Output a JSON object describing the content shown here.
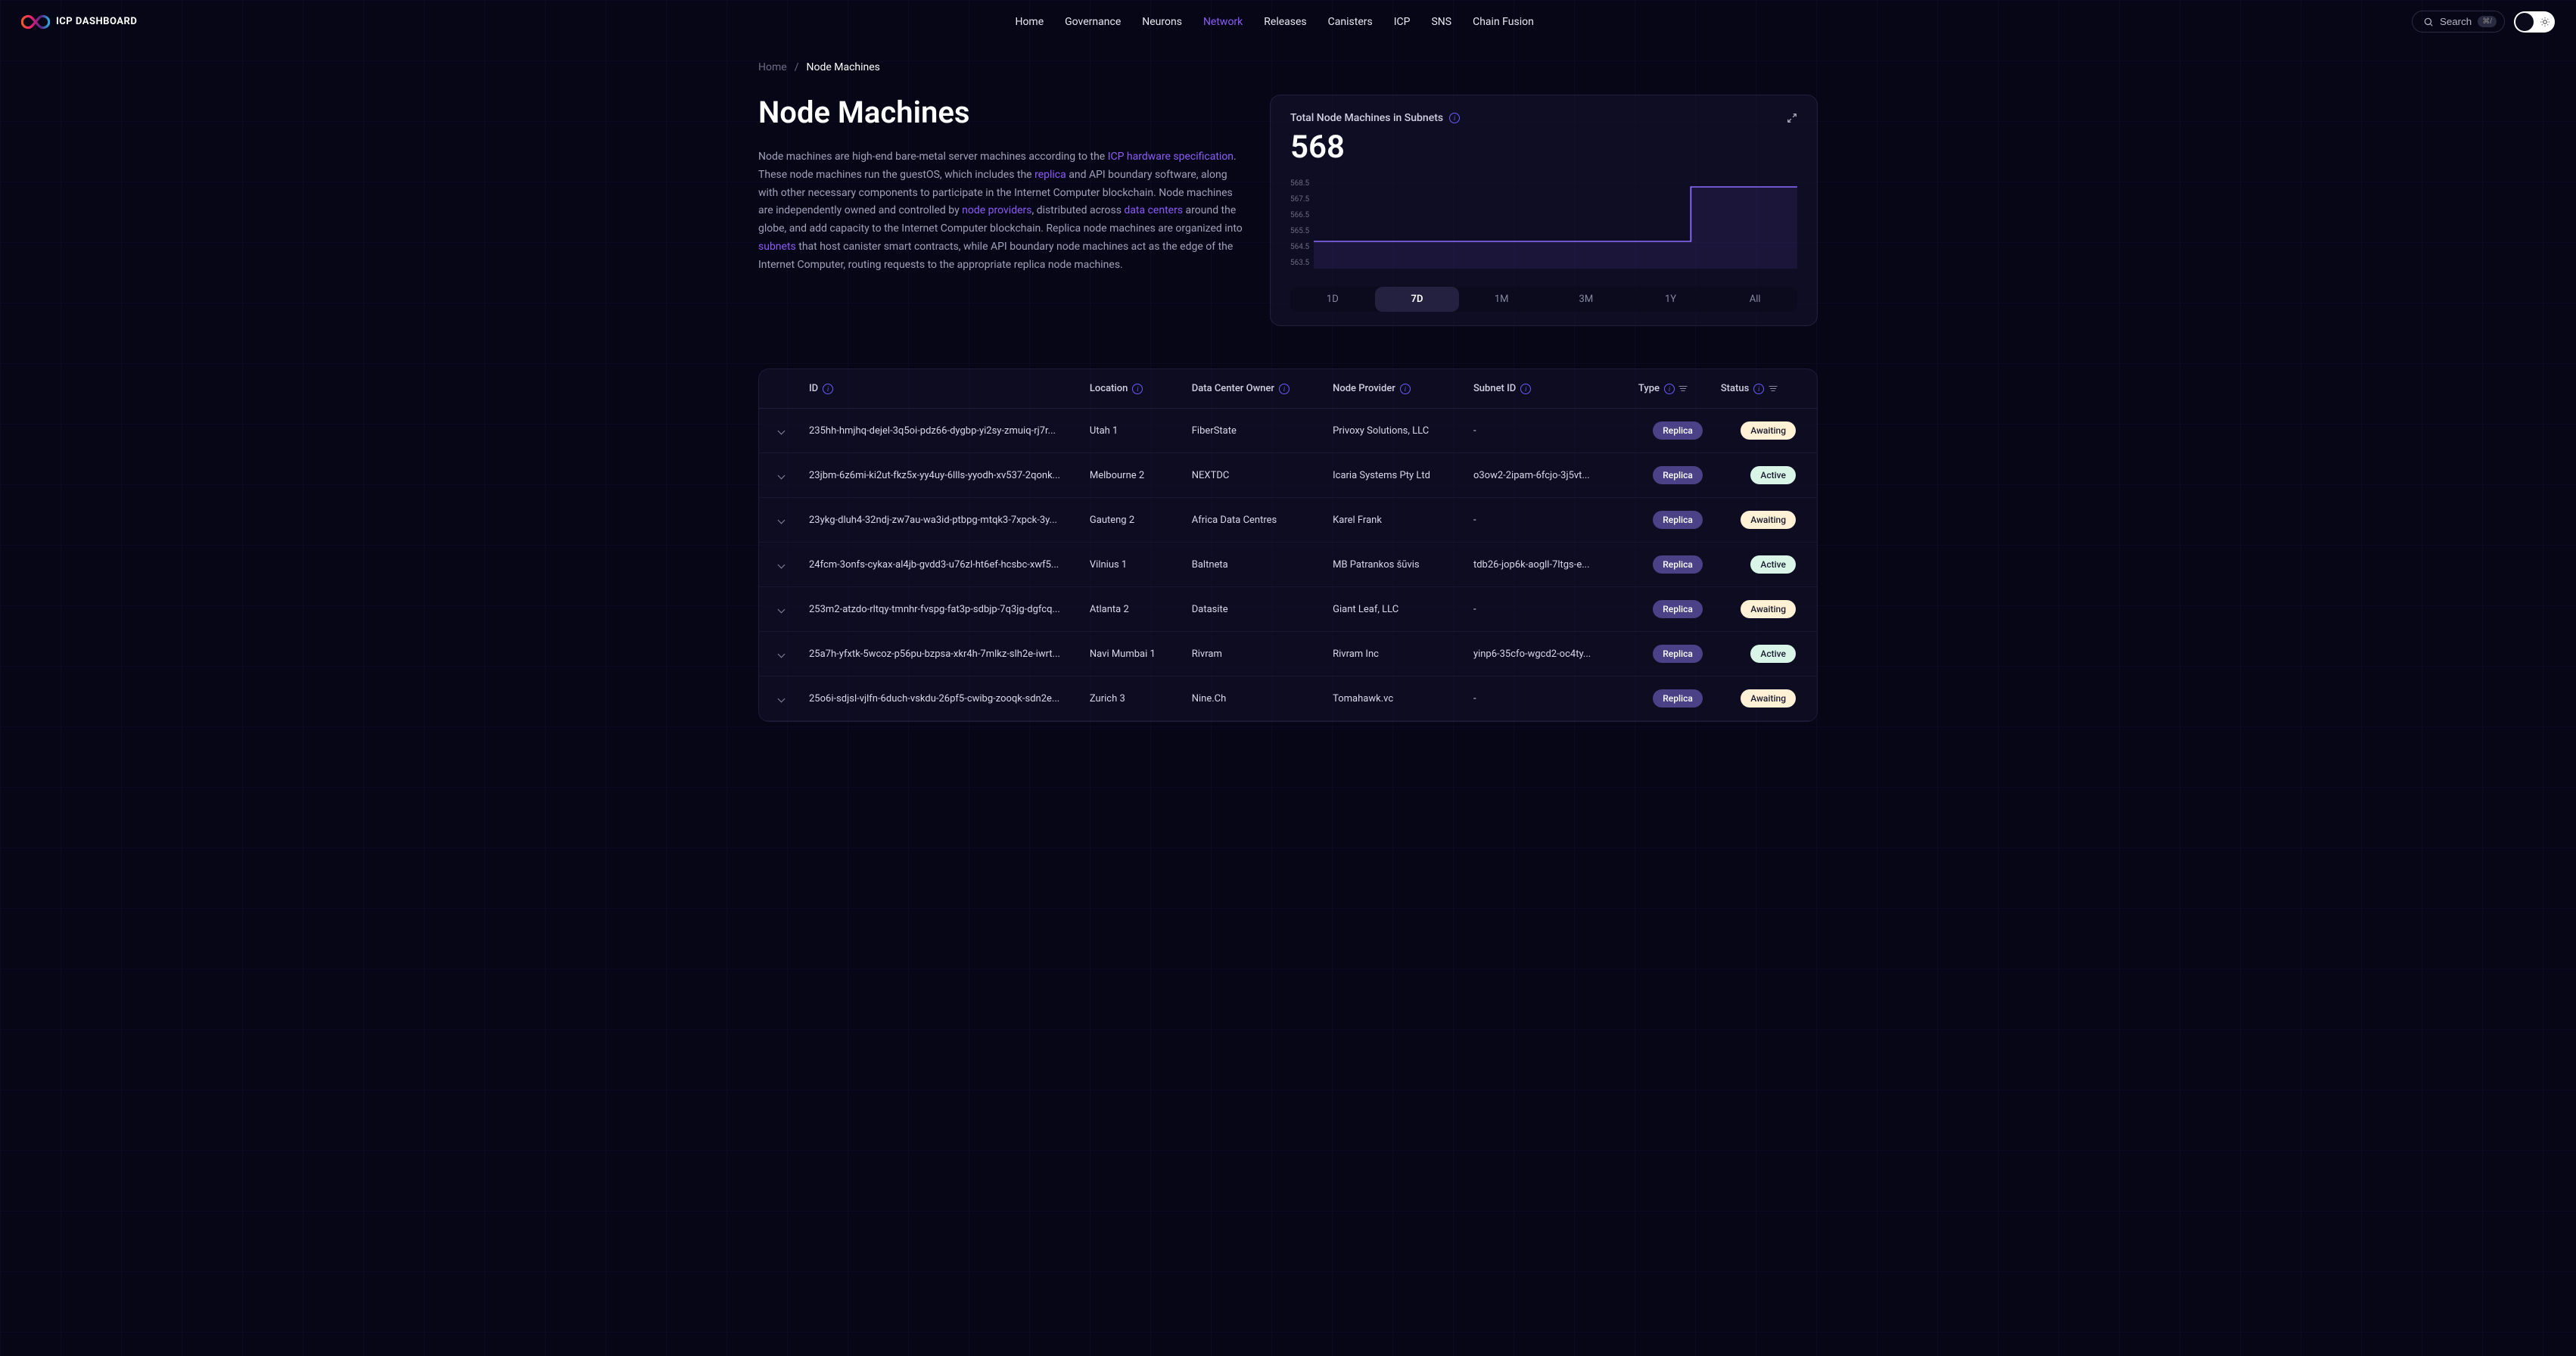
{
  "brand": "ICP DASHBOARD",
  "nav": {
    "items": [
      "Home",
      "Governance",
      "Neurons",
      "Network",
      "Releases",
      "Canisters",
      "ICP",
      "SNS",
      "Chain Fusion"
    ],
    "active_index": 3
  },
  "search": {
    "label": "Search",
    "kbd": "⌘/"
  },
  "breadcrumb": {
    "home": "Home",
    "sep": "/",
    "current": "Node Machines"
  },
  "page": {
    "title": "Node Machines"
  },
  "desc": {
    "p1a": "Node machines are high-end bare-metal server machines according to the ",
    "link1": "ICP hardware specification",
    "p1b": ". These node machines run the guestOS, which includes the ",
    "link2": "replica",
    "p1c": " and API boundary software, along with other necessary components to participate in the Internet Computer blockchain. Node machines are independently owned and controlled by ",
    "link3": "node providers",
    "p1d": ", distributed across ",
    "link4": "data centers",
    "p1e": " around the globe, and add capacity to the Internet Computer blockchain. Replica node machines are organized into ",
    "link5": "subnets",
    "p1f": " that host canister smart contracts, while API boundary node machines act as the edge of the Internet Computer, routing requests to the appropriate replica node machines."
  },
  "chart": {
    "title": "Total Node Machines in Subnets",
    "value": "568",
    "y_ticks": [
      "568.5",
      "567.5",
      "566.5",
      "565.5",
      "564.5",
      "563.5"
    ],
    "y_domain": [
      563.5,
      568.5
    ],
    "line_color": "#8b6cff",
    "fill_color": "rgba(139,108,255,0.10)",
    "series": [
      {
        "x": 0.0,
        "y": 565
      },
      {
        "x": 0.78,
        "y": 565
      },
      {
        "x": 0.78,
        "y": 568
      },
      {
        "x": 1.0,
        "y": 568
      }
    ],
    "ranges": [
      "1D",
      "7D",
      "1M",
      "3M",
      "1Y",
      "All"
    ],
    "active_range_index": 1
  },
  "table": {
    "columns": {
      "id": "ID",
      "location": "Location",
      "data_center_owner": "Data Center Owner",
      "node_provider": "Node Provider",
      "subnet_id": "Subnet ID",
      "type": "Type",
      "status": "Status"
    },
    "rows": [
      {
        "id": "235hh-hmjhq-dejel-3q5oi-pdz66-dygbp-yi2sy-zmuiq-rj7r...",
        "location": "Utah 1",
        "owner": "FiberState",
        "provider": "Privoxy Solutions, LLC",
        "subnet": "-",
        "type": "Replica",
        "status": "Awaiting"
      },
      {
        "id": "23jbm-6z6mi-ki2ut-fkz5x-yy4uy-6llls-yyodh-xv537-2qonk...",
        "location": "Melbourne 2",
        "owner": "NEXTDC",
        "provider": "Icaria Systems Pty Ltd",
        "subnet": "o3ow2-2ipam-6fcjo-3j5vt...",
        "type": "Replica",
        "status": "Active"
      },
      {
        "id": "23ykg-dluh4-32ndj-zw7au-wa3id-ptbpg-mtqk3-7xpck-3y...",
        "location": "Gauteng 2",
        "owner": "Africa Data Centres",
        "provider": "Karel Frank",
        "subnet": "-",
        "type": "Replica",
        "status": "Awaiting"
      },
      {
        "id": "24fcm-3onfs-cykax-al4jb-gvdd3-u76zl-ht6ef-hcsbc-xwf5...",
        "location": "Vilnius 1",
        "owner": "Baltneta",
        "provider": "MB Patrankos šūvis",
        "subnet": "tdb26-jop6k-aogll-7ltgs-e...",
        "type": "Replica",
        "status": "Active"
      },
      {
        "id": "253m2-atzdo-rltqy-tmnhr-fvspg-fat3p-sdbjp-7q3jg-dgfcq...",
        "location": "Atlanta 2",
        "owner": "Datasite",
        "provider": "Giant Leaf, LLC",
        "subnet": "-",
        "type": "Replica",
        "status": "Awaiting"
      },
      {
        "id": "25a7h-yfxtk-5wcoz-p56pu-bzpsa-xkr4h-7mlkz-slh2e-iwrt...",
        "location": "Navi Mumbai 1",
        "owner": "Rivram",
        "provider": "Rivram Inc",
        "subnet": "yinp6-35cfo-wgcd2-oc4ty...",
        "type": "Replica",
        "status": "Active"
      },
      {
        "id": "25o6i-sdjsl-vjlfn-6duch-vskdu-26pf5-cwibg-zooqk-sdn2e...",
        "location": "Zurich 3",
        "owner": "Nine.Ch",
        "provider": "Tomahawk.vc",
        "subnet": "-",
        "type": "Replica",
        "status": "Awaiting"
      }
    ]
  },
  "colors": {
    "accent": "#8b5cf6",
    "bg": "#070617",
    "card": "rgba(22,20,45,0.55)"
  }
}
